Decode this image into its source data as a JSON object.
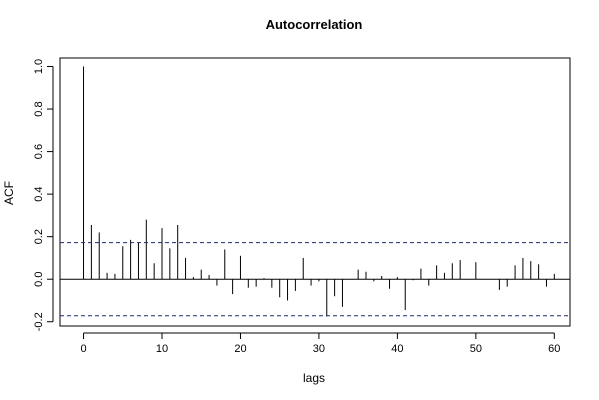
{
  "chart_data": {
    "type": "bar",
    "title": "Autocorrelation",
    "xlabel": "lags",
    "ylabel": "ACF",
    "xlim": [
      -3,
      62
    ],
    "ylim": [
      -0.22,
      1.04
    ],
    "x_ticks": [
      0,
      10,
      20,
      30,
      40,
      50,
      60
    ],
    "y_ticks": [
      -0.2,
      0.0,
      0.2,
      0.4,
      0.6,
      0.8,
      1.0
    ],
    "y_tick_labels": [
      "-0.2",
      "0.0",
      "0.2",
      "0.4",
      "0.6",
      "0.8",
      "1.0"
    ],
    "confidence_bounds": [
      0.172,
      -0.172
    ],
    "lags": [
      0,
      1,
      2,
      3,
      4,
      5,
      6,
      7,
      8,
      9,
      10,
      11,
      12,
      13,
      14,
      15,
      16,
      17,
      18,
      19,
      20,
      21,
      22,
      23,
      24,
      25,
      26,
      27,
      28,
      29,
      30,
      31,
      32,
      33,
      34,
      35,
      36,
      37,
      38,
      39,
      40,
      41,
      42,
      43,
      44,
      45,
      46,
      47,
      48,
      49,
      50,
      51,
      52,
      53,
      54,
      55,
      56,
      57,
      58,
      59,
      60
    ],
    "acf": [
      1.0,
      0.255,
      0.22,
      0.03,
      0.025,
      0.155,
      0.185,
      0.17,
      0.28,
      0.075,
      0.24,
      0.145,
      0.255,
      0.1,
      0.01,
      0.045,
      0.02,
      -0.03,
      0.14,
      -0.07,
      0.11,
      -0.04,
      -0.035,
      0.005,
      -0.04,
      -0.085,
      -0.1,
      -0.055,
      0.1,
      -0.03,
      -0.01,
      -0.175,
      -0.08,
      -0.13,
      0.0,
      0.045,
      0.035,
      -0.01,
      0.015,
      -0.045,
      0.01,
      -0.145,
      -0.005,
      0.05,
      -0.03,
      0.065,
      0.03,
      0.075,
      0.09,
      0.0,
      0.08,
      0.0,
      0.0,
      -0.05,
      -0.035,
      0.065,
      0.1,
      0.085,
      0.07,
      -0.035,
      0.025
    ],
    "grid": false,
    "colors": {
      "bars": "#000000",
      "bounds": "#1f2a6b",
      "zero_line": "#000000"
    }
  }
}
